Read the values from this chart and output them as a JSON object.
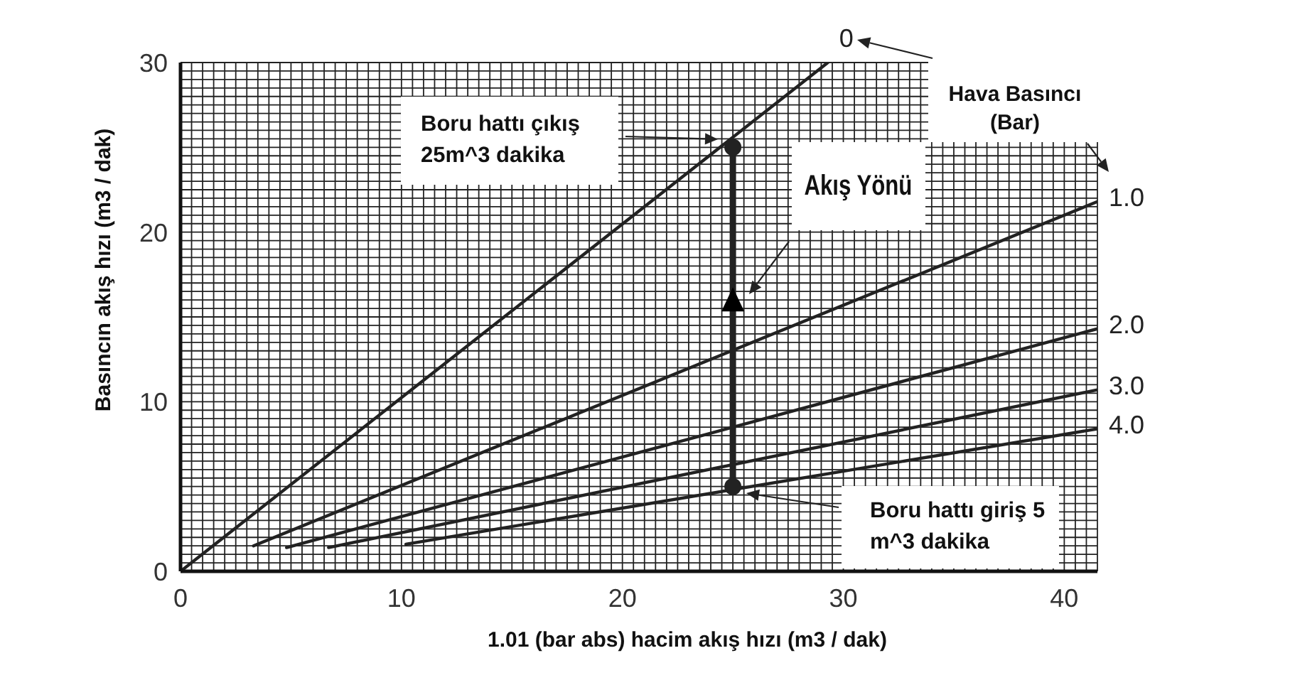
{
  "chart_data": {
    "type": "line",
    "xlabel": "1.01 (bar abs) hacim akış hızı (m3 / dak)",
    "ylabel": "Basıncın akış hızı (m3 / dak)",
    "legend_title": "Hava Basıncı (Bar)",
    "xlim": [
      0,
      41.5
    ],
    "ylim": [
      0,
      30
    ],
    "xticks": [
      0,
      {
        "value": 0.5,
        "label": null
      },
      {
        "value": 1,
        "label": null
      },
      {
        "value": 1.5,
        "label": null
      },
      {
        "value": 2,
        "label": null
      },
      {
        "value": 2.5,
        "label": null
      },
      {
        "value": 3,
        "label": null
      },
      {
        "value": 3.5,
        "label": null
      },
      {
        "value": 4,
        "label": null
      },
      {
        "value": 4.5,
        "label": null
      },
      {
        "value": 5,
        "label": null
      },
      {
        "value": 5.5,
        "label": null
      },
      {
        "value": 6,
        "label": null
      },
      {
        "value": 6.5,
        "label": null
      },
      {
        "value": 7,
        "label": null
      },
      {
        "value": 7.5,
        "label": null
      },
      {
        "value": 8,
        "label": null
      },
      {
        "value": 8.5,
        "label": null
      },
      {
        "value": 9,
        "label": null
      },
      {
        "value": 9.5,
        "label": null
      },
      10,
      {
        "value": 10.5,
        "label": null
      },
      {
        "value": 11,
        "label": null
      },
      {
        "value": 11.5,
        "label": null
      },
      {
        "value": 12,
        "label": null
      },
      {
        "value": 12.5,
        "label": null
      },
      {
        "value": 13,
        "label": null
      },
      {
        "value": 13.5,
        "label": null
      },
      {
        "value": 14,
        "label": null
      },
      {
        "value": 14.5,
        "label": null
      },
      {
        "value": 15,
        "label": null
      },
      {
        "value": 15.5,
        "label": null
      },
      {
        "value": 16,
        "label": null
      },
      {
        "value": 16.5,
        "label": null
      },
      {
        "value": 17,
        "label": null
      },
      {
        "value": 17.5,
        "label": null
      },
      {
        "value": 18,
        "label": null
      },
      {
        "value": 18.5,
        "label": null
      },
      {
        "value": 19,
        "label": null
      },
      {
        "value": 19.5,
        "label": null
      },
      20,
      {
        "value": 20.5,
        "label": null
      },
      {
        "value": 21,
        "label": null
      },
      {
        "value": 21.5,
        "label": null
      },
      {
        "value": 22,
        "label": null
      },
      {
        "value": 22.5,
        "label": null
      },
      {
        "value": 23,
        "label": null
      },
      {
        "value": 23.5,
        "label": null
      },
      {
        "value": 24,
        "label": null
      },
      {
        "value": 24.5,
        "label": null
      },
      {
        "value": 25,
        "label": null
      },
      {
        "value": 25.5,
        "label": null
      },
      {
        "value": 26,
        "label": null
      },
      {
        "value": 26.5,
        "label": null
      },
      {
        "value": 27,
        "label": null
      },
      {
        "value": 27.5,
        "label": null
      },
      {
        "value": 28,
        "label": null
      },
      {
        "value": 28.5,
        "label": null
      },
      {
        "value": 29,
        "label": null
      },
      {
        "value": 29.5,
        "label": null
      },
      30,
      {
        "value": 30.5,
        "label": null
      },
      {
        "value": 31,
        "label": null
      },
      {
        "value": 31.5,
        "label": null
      },
      {
        "value": 32,
        "label": null
      },
      {
        "value": 32.5,
        "label": null
      },
      {
        "value": 33,
        "label": null
      },
      {
        "value": 33.5,
        "label": null
      },
      {
        "value": 34,
        "label": null
      },
      {
        "value": 34.5,
        "label": null
      },
      {
        "value": 35,
        "label": null
      },
      {
        "value": 35.5,
        "label": null
      },
      {
        "value": 36,
        "label": null
      },
      {
        "value": 36.5,
        "label": null
      },
      {
        "value": 37,
        "label": null
      },
      {
        "value": 37.5,
        "label": null
      },
      {
        "value": 38,
        "label": null
      },
      {
        "value": 38.5,
        "label": null
      },
      {
        "value": 39,
        "label": null
      },
      {
        "value": 39.5,
        "label": null
      },
      40,
      {
        "value": 40.5,
        "label": null
      },
      {
        "value": 41,
        "label": null
      },
      {
        "value": 41.5,
        "label": null
      }
    ],
    "yticks": [
      0,
      {
        "value": 0.5,
        "label": null
      },
      {
        "value": 1,
        "label": null
      },
      {
        "value": 1.5,
        "label": null
      },
      {
        "value": 2,
        "label": null
      },
      {
        "value": 2.5,
        "label": null
      },
      {
        "value": 3,
        "label": null
      },
      {
        "value": 3.5,
        "label": null
      },
      {
        "value": 4,
        "label": null
      },
      {
        "value": 4.5,
        "label": null
      },
      {
        "value": 5,
        "label": null
      },
      {
        "value": 5.5,
        "label": null
      },
      {
        "value": 6,
        "label": null
      },
      {
        "value": 6.5,
        "label": null
      },
      {
        "value": 7,
        "label": null
      },
      {
        "value": 7.5,
        "label": null
      },
      {
        "value": 8,
        "label": null
      },
      {
        "value": 8.5,
        "label": null
      },
      {
        "value": 9,
        "label": null
      },
      {
        "value": 9.5,
        "label": null
      },
      10,
      {
        "value": 10.5,
        "label": null
      },
      {
        "value": 11,
        "label": null
      },
      {
        "value": 11.5,
        "label": null
      },
      {
        "value": 12,
        "label": null
      },
      {
        "value": 12.5,
        "label": null
      },
      {
        "value": 13,
        "label": null
      },
      {
        "value": 13.5,
        "label": null
      },
      {
        "value": 14,
        "label": null
      },
      {
        "value": 14.5,
        "label": null
      },
      {
        "value": 15,
        "label": null
      },
      {
        "value": 15.5,
        "label": null
      },
      {
        "value": 16,
        "label": null
      },
      {
        "value": 16.5,
        "label": null
      },
      {
        "value": 17,
        "label": null
      },
      {
        "value": 17.5,
        "label": null
      },
      {
        "value": 18,
        "label": null
      },
      {
        "value": 18.5,
        "label": null
      },
      {
        "value": 19,
        "label": null
      },
      {
        "value": 19.5,
        "label": null
      },
      20,
      {
        "value": 20.5,
        "label": null
      },
      {
        "value": 21,
        "label": null
      },
      {
        "value": 21.5,
        "label": null
      },
      {
        "value": 22,
        "label": null
      },
      {
        "value": 22.5,
        "label": null
      },
      {
        "value": 23,
        "label": null
      },
      {
        "value": 23.5,
        "label": null
      },
      {
        "value": 24,
        "label": null
      },
      {
        "value": 24.5,
        "label": null
      },
      {
        "value": 25,
        "label": null
      },
      {
        "value": 25.5,
        "label": null
      },
      {
        "value": 26,
        "label": null
      },
      {
        "value": 26.5,
        "label": null
      },
      {
        "value": 27,
        "label": null
      },
      {
        "value": 27.5,
        "label": null
      },
      {
        "value": 28,
        "label": null
      },
      {
        "value": 28.5,
        "label": null
      },
      {
        "value": 29,
        "label": null
      },
      {
        "value": 29.5,
        "label": null
      },
      30
    ],
    "grid": true,
    "series": [
      {
        "name": "0",
        "color": "#222222",
        "x": [
          0,
          29.3
        ],
        "values": [
          0,
          30
        ]
      },
      {
        "name": "1.0",
        "color": "#222222",
        "x": [
          3.3,
          41.5
        ],
        "values": [
          1.5,
          21.8
        ]
      },
      {
        "name": "2.0",
        "color": "#222222",
        "x": [
          4.8,
          41.5
        ],
        "values": [
          1.4,
          14.3
        ]
      },
      {
        "name": "3.0",
        "color": "#222222",
        "x": [
          6.7,
          41.5
        ],
        "values": [
          1.4,
          10.7
        ]
      },
      {
        "name": "4.0",
        "color": "#222222",
        "x": [
          10.2,
          41.5
        ],
        "values": [
          1.6,
          8.4
        ]
      },
      {
        "color": "#222222",
        "x": [
          25,
          25
        ],
        "values": [
          5,
          25
        ],
        "marker": "circle"
      }
    ],
    "annotations": [
      "Boru hattı çıkış 25m^3 dakika",
      "Boru hattı giriş 5 m^3 dakika",
      "Akış Yönü"
    ]
  }
}
